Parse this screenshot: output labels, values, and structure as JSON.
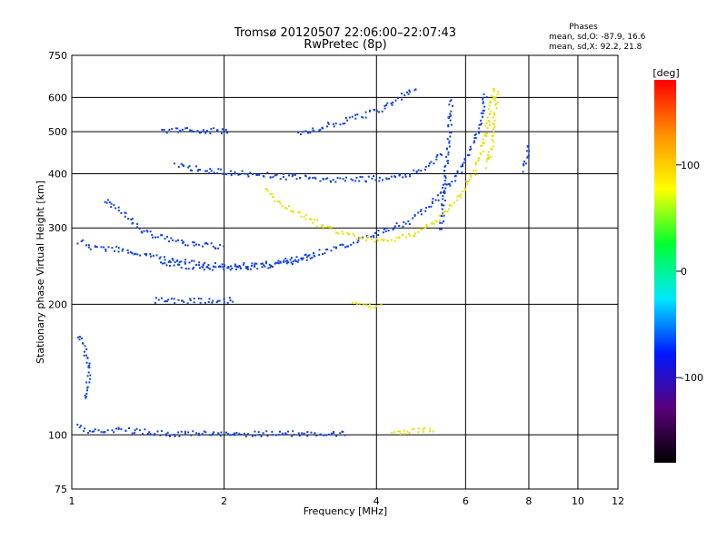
{
  "chart_data": {
    "type": "scatter",
    "title": "Tromsø 20120507 22:06:00–22:07:43",
    "subtitle": "RwPretec (8p)",
    "xlabel": "Frequency [MHz]",
    "ylabel": "Stationary phase Virtual Height [km]",
    "x_scale": "log",
    "y_scale": "log",
    "xlim": [
      1,
      12
    ],
    "ylim": [
      75,
      750
    ],
    "x_ticks": [
      1,
      2,
      4,
      6,
      8,
      10,
      12
    ],
    "y_ticks": [
      75,
      100,
      200,
      300,
      400,
      500,
      600,
      750
    ],
    "x_grid": [
      2,
      4,
      6,
      8,
      10
    ],
    "y_grid": [
      100,
      200,
      300,
      400,
      500,
      600
    ],
    "grid": true,
    "annotation": {
      "title": "Phases",
      "line1": "mean, sd,O:  -87.9, 16.6",
      "line2": "mean, sd,X:  92.2, 21.8"
    },
    "colorbar": {
      "label": "[deg]",
      "ticks": [
        100,
        0,
        -100
      ],
      "range": [
        -180,
        180
      ],
      "colors": [
        "#000000",
        "#5a007a",
        "#0018ff",
        "#00e8ff",
        "#00ff30",
        "#ffff00",
        "#ff9000",
        "#ff0000"
      ]
    },
    "series": [
      {
        "mode": "O",
        "phase": -90,
        "color": "#1040e8",
        "segments": [
          [
            [
              1.03,
              280
            ],
            [
              1.1,
              270
            ],
            [
              1.2,
              270
            ],
            [
              1.3,
              265
            ],
            [
              1.45,
              258
            ],
            [
              1.6,
              253
            ],
            [
              1.8,
              248
            ],
            [
              2.0,
              246
            ],
            [
              2.3,
              247
            ],
            [
              2.6,
              252
            ],
            [
              3.0,
              262
            ],
            [
              3.4,
              273
            ],
            [
              3.8,
              285
            ],
            [
              4.2,
              298
            ],
            [
              4.6,
              312
            ],
            [
              5.0,
              335
            ],
            [
              5.4,
              365
            ],
            [
              5.8,
              405
            ],
            [
              6.1,
              450
            ],
            [
              6.3,
              500
            ],
            [
              6.45,
              560
            ],
            [
              6.55,
              620
            ]
          ],
          [
            [
              1.5,
              250
            ],
            [
              1.7,
              246
            ],
            [
              1.9,
              244
            ],
            [
              2.1,
              244
            ],
            [
              2.4,
              246
            ],
            [
              2.7,
              252
            ],
            [
              3.0,
              260
            ]
          ],
          [
            [
              1.15,
              350
            ],
            [
              1.25,
              330
            ],
            [
              1.35,
              300
            ],
            [
              1.45,
              290
            ],
            [
              1.6,
              280
            ],
            [
              1.8,
              275
            ],
            [
              2.0,
              272
            ]
          ],
          [
            [
              1.6,
              420
            ],
            [
              1.8,
              410
            ],
            [
              2.0,
              405
            ],
            [
              2.3,
              400
            ],
            [
              2.7,
              395
            ],
            [
              3.1,
              390
            ],
            [
              3.6,
              390
            ],
            [
              4.1,
              392
            ],
            [
              4.5,
              398
            ],
            [
              4.9,
              410
            ],
            [
              5.2,
              430
            ],
            [
              5.4,
              450
            ]
          ],
          [
            [
              1.5,
              505
            ],
            [
              1.7,
              505
            ],
            [
              1.9,
              505
            ],
            [
              2.05,
              505
            ]
          ],
          [
            [
              2.8,
              500
            ],
            [
              3.2,
              520
            ],
            [
              3.6,
              540
            ],
            [
              4.0,
              560
            ],
            [
              4.4,
              600
            ],
            [
              4.8,
              640
            ]
          ],
          [
            [
              1.02,
              105
            ],
            [
              1.06,
              103
            ],
            [
              1.1,
              103
            ],
            [
              1.25,
              103
            ],
            [
              1.4,
              102
            ],
            [
              1.6,
              101
            ],
            [
              1.8,
              101
            ],
            [
              2.0,
              101
            ],
            [
              2.3,
              101
            ],
            [
              2.6,
              101
            ],
            [
              2.9,
              101
            ],
            [
              3.2,
              101
            ],
            [
              3.5,
              101
            ]
          ],
          [
            [
              1.03,
              170
            ],
            [
              1.05,
              160
            ],
            [
              1.07,
              150
            ],
            [
              1.08,
              140
            ],
            [
              1.07,
              130
            ],
            [
              1.05,
              120
            ]
          ],
          [
            [
              1.45,
              205
            ],
            [
              1.7,
              205
            ],
            [
              1.9,
              205
            ],
            [
              2.1,
              205
            ]
          ],
          [
            [
              5.35,
              300
            ],
            [
              5.45,
              400
            ],
            [
              5.55,
              500
            ],
            [
              5.6,
              600
            ]
          ],
          [
            [
              7.8,
              410
            ],
            [
              7.9,
              440
            ],
            [
              7.95,
              470
            ]
          ]
        ]
      },
      {
        "mode": "X",
        "phase": 92,
        "color": "#e8e000",
        "segments": [
          [
            [
              2.4,
              370
            ],
            [
              2.6,
              340
            ],
            [
              2.9,
              318
            ],
            [
              3.2,
              300
            ],
            [
              3.5,
              290
            ],
            [
              3.9,
              284
            ],
            [
              4.3,
              285
            ],
            [
              4.7,
              292
            ],
            [
              5.1,
              305
            ],
            [
              5.5,
              330
            ],
            [
              5.9,
              365
            ],
            [
              6.2,
              405
            ],
            [
              6.45,
              460
            ],
            [
              6.6,
              520
            ],
            [
              6.7,
              580
            ],
            [
              6.8,
              640
            ]
          ],
          [
            [
              3.6,
              200
            ],
            [
              3.9,
              200
            ],
            [
              4.1,
              200
            ]
          ],
          [
            [
              4.3,
              102
            ],
            [
              4.6,
              102
            ],
            [
              4.9,
              103
            ],
            [
              5.2,
              104
            ]
          ],
          [
            [
              6.6,
              420
            ],
            [
              6.75,
              480
            ],
            [
              6.85,
              560
            ],
            [
              6.9,
              620
            ]
          ]
        ]
      }
    ]
  }
}
